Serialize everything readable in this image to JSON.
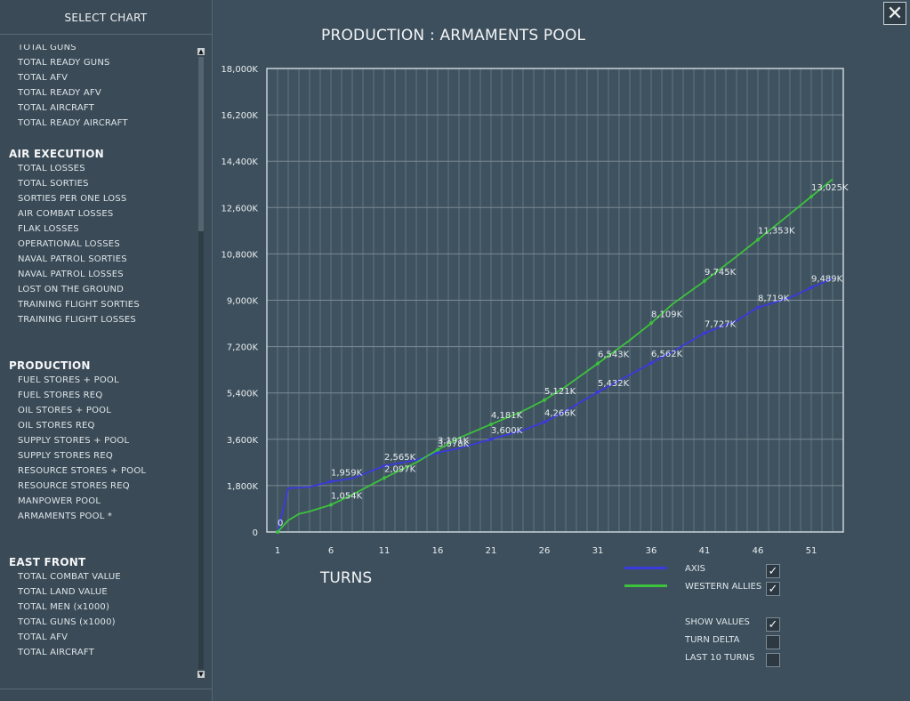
{
  "sidebar": {
    "title": "SELECT CHART",
    "entries": [
      {
        "kind": "item",
        "label": "TOTAL GUNS"
      },
      {
        "kind": "item",
        "label": "TOTAL READY GUNS"
      },
      {
        "kind": "item",
        "label": "TOTAL AFV"
      },
      {
        "kind": "item",
        "label": "TOTAL READY AFV"
      },
      {
        "kind": "item",
        "label": "TOTAL AIRCRAFT"
      },
      {
        "kind": "item",
        "label": "TOTAL READY AIRCRAFT"
      },
      {
        "kind": "gap"
      },
      {
        "kind": "section",
        "label": "AIR EXECUTION"
      },
      {
        "kind": "item",
        "label": "TOTAL LOSSES"
      },
      {
        "kind": "item",
        "label": "TOTAL SORTIES"
      },
      {
        "kind": "item",
        "label": "SORTIES PER ONE LOSS"
      },
      {
        "kind": "item",
        "label": "AIR COMBAT LOSSES"
      },
      {
        "kind": "item",
        "label": "FLAK LOSSES"
      },
      {
        "kind": "item",
        "label": "OPERATIONAL LOSSES"
      },
      {
        "kind": "item",
        "label": "NAVAL PATROL SORTIES"
      },
      {
        "kind": "item",
        "label": "NAVAL PATROL LOSSES"
      },
      {
        "kind": "item",
        "label": "LOST ON THE GROUND"
      },
      {
        "kind": "item",
        "label": "TRAINING FLIGHT SORTIES"
      },
      {
        "kind": "item",
        "label": "TRAINING FLIGHT LOSSES"
      },
      {
        "kind": "gap"
      },
      {
        "kind": "gap"
      },
      {
        "kind": "section",
        "label": "PRODUCTION"
      },
      {
        "kind": "item",
        "label": "FUEL STORES + POOL"
      },
      {
        "kind": "item",
        "label": "FUEL STORES REQ"
      },
      {
        "kind": "item",
        "label": "OIL STORES + POOL"
      },
      {
        "kind": "item",
        "label": "OIL STORES REQ"
      },
      {
        "kind": "item",
        "label": "SUPPLY STORES + POOL"
      },
      {
        "kind": "item",
        "label": "SUPPLY STORES REQ"
      },
      {
        "kind": "item",
        "label": "RESOURCE STORES + POOL"
      },
      {
        "kind": "item",
        "label": "RESOURCE STORES REQ"
      },
      {
        "kind": "item",
        "label": "MANPOWER POOL"
      },
      {
        "kind": "item",
        "label": "ARMAMENTS POOL *"
      },
      {
        "kind": "gap"
      },
      {
        "kind": "gap"
      },
      {
        "kind": "section",
        "label": "EAST FRONT"
      },
      {
        "kind": "item",
        "label": "TOTAL COMBAT VALUE"
      },
      {
        "kind": "item",
        "label": "TOTAL LAND VALUE"
      },
      {
        "kind": "item",
        "label": "TOTAL MEN (x1000)"
      },
      {
        "kind": "item",
        "label": "TOTAL GUNS (x1000)"
      },
      {
        "kind": "item",
        "label": "TOTAL AFV"
      },
      {
        "kind": "item",
        "label": "TOTAL AIRCRAFT"
      }
    ],
    "scroll_up_icon": "▲",
    "scroll_down_icon": "▼"
  },
  "window": {
    "close_icon": "✕",
    "close_icon_name": "close-icon"
  },
  "legend": {
    "axis_label": "AXIS",
    "allies_label": "WESTERN ALLIES",
    "axis_checked": "✓",
    "allies_checked": "✓"
  },
  "options": {
    "show_values_label": "SHOW VALUES",
    "show_values_checked": "✓",
    "turn_delta_label": "TURN DELTA",
    "turn_delta_checked": "",
    "last10_label": "LAST 10 TURNS",
    "last10_checked": ""
  },
  "chart_data": {
    "type": "line",
    "title": "PRODUCTION : ARMAMENTS POOL",
    "xlabel": "TURNS",
    "ylabel": "",
    "xlim": [
      1,
      54
    ],
    "ylim": [
      0,
      18000
    ],
    "x_ticks": [
      1,
      6,
      11,
      16,
      21,
      26,
      31,
      36,
      41,
      46,
      51
    ],
    "y_ticks": [
      0,
      1800,
      3600,
      5400,
      7200,
      9000,
      10800,
      12600,
      14400,
      16200,
      18000
    ],
    "y_tick_labels": [
      "0",
      "1,800K",
      "3,600K",
      "5,400K",
      "7,200K",
      "9,000K",
      "10,800K",
      "12,600K",
      "14,400K",
      "16,200K",
      "18,000K"
    ],
    "grid": true,
    "series": [
      {
        "name": "AXIS",
        "color": "#3a3ae0",
        "x": [
          1,
          2,
          3,
          4,
          6,
          8,
          11,
          14,
          16,
          18,
          21,
          24,
          26,
          28,
          31,
          34,
          36,
          38,
          41,
          44,
          46,
          49,
          51,
          53
        ],
        "y": [
          0,
          1700,
          1720,
          1750,
          1959,
          2080,
          2565,
          2800,
          3078,
          3250,
          3600,
          3950,
          4266,
          4700,
          5432,
          6100,
          6562,
          7000,
          7727,
          8200,
          8719,
          9100,
          9489,
          9850
        ],
        "labels": [
          {
            "x": 6,
            "y": 1959,
            "text": "1,959K"
          },
          {
            "x": 11,
            "y": 2565,
            "text": "2,565K"
          },
          {
            "x": 16,
            "y": 3078,
            "text": "3,078K"
          },
          {
            "x": 21,
            "y": 3600,
            "text": "3,600K"
          },
          {
            "x": 26,
            "y": 4266,
            "text": "4,266K"
          },
          {
            "x": 31,
            "y": 5432,
            "text": "5,432K"
          },
          {
            "x": 36,
            "y": 6562,
            "text": "6,562K"
          },
          {
            "x": 41,
            "y": 7727,
            "text": "7,727K"
          },
          {
            "x": 46,
            "y": 8719,
            "text": "8,719K"
          },
          {
            "x": 51,
            "y": 9489,
            "text": "9,489K"
          }
        ]
      },
      {
        "name": "WESTERN ALLIES",
        "color": "#3cc23c",
        "x": [
          1,
          2,
          3,
          4,
          6,
          8,
          11,
          14,
          16,
          18,
          21,
          24,
          26,
          28,
          31,
          34,
          36,
          38,
          41,
          44,
          46,
          49,
          51,
          53
        ],
        "y": [
          0,
          450,
          700,
          800,
          1054,
          1450,
          2097,
          2700,
          3191,
          3650,
          4181,
          4700,
          5121,
          5650,
          6543,
          7450,
          8109,
          8850,
          9745,
          10700,
          11353,
          12350,
          13025,
          13700
        ],
        "labels": [
          {
            "x": 1,
            "y": 0,
            "text": "0"
          },
          {
            "x": 6,
            "y": 1054,
            "text": "1,054K"
          },
          {
            "x": 11,
            "y": 2097,
            "text": "2,097K"
          },
          {
            "x": 16,
            "y": 3191,
            "text": "3,191K"
          },
          {
            "x": 21,
            "y": 4181,
            "text": "4,181K"
          },
          {
            "x": 26,
            "y": 5121,
            "text": "5,121K"
          },
          {
            "x": 31,
            "y": 6543,
            "text": "6,543K"
          },
          {
            "x": 36,
            "y": 8109,
            "text": "8,109K"
          },
          {
            "x": 41,
            "y": 9745,
            "text": "9,745K"
          },
          {
            "x": 46,
            "y": 11353,
            "text": "11,353K"
          },
          {
            "x": 51,
            "y": 13025,
            "text": "13,025K"
          }
        ]
      }
    ]
  }
}
